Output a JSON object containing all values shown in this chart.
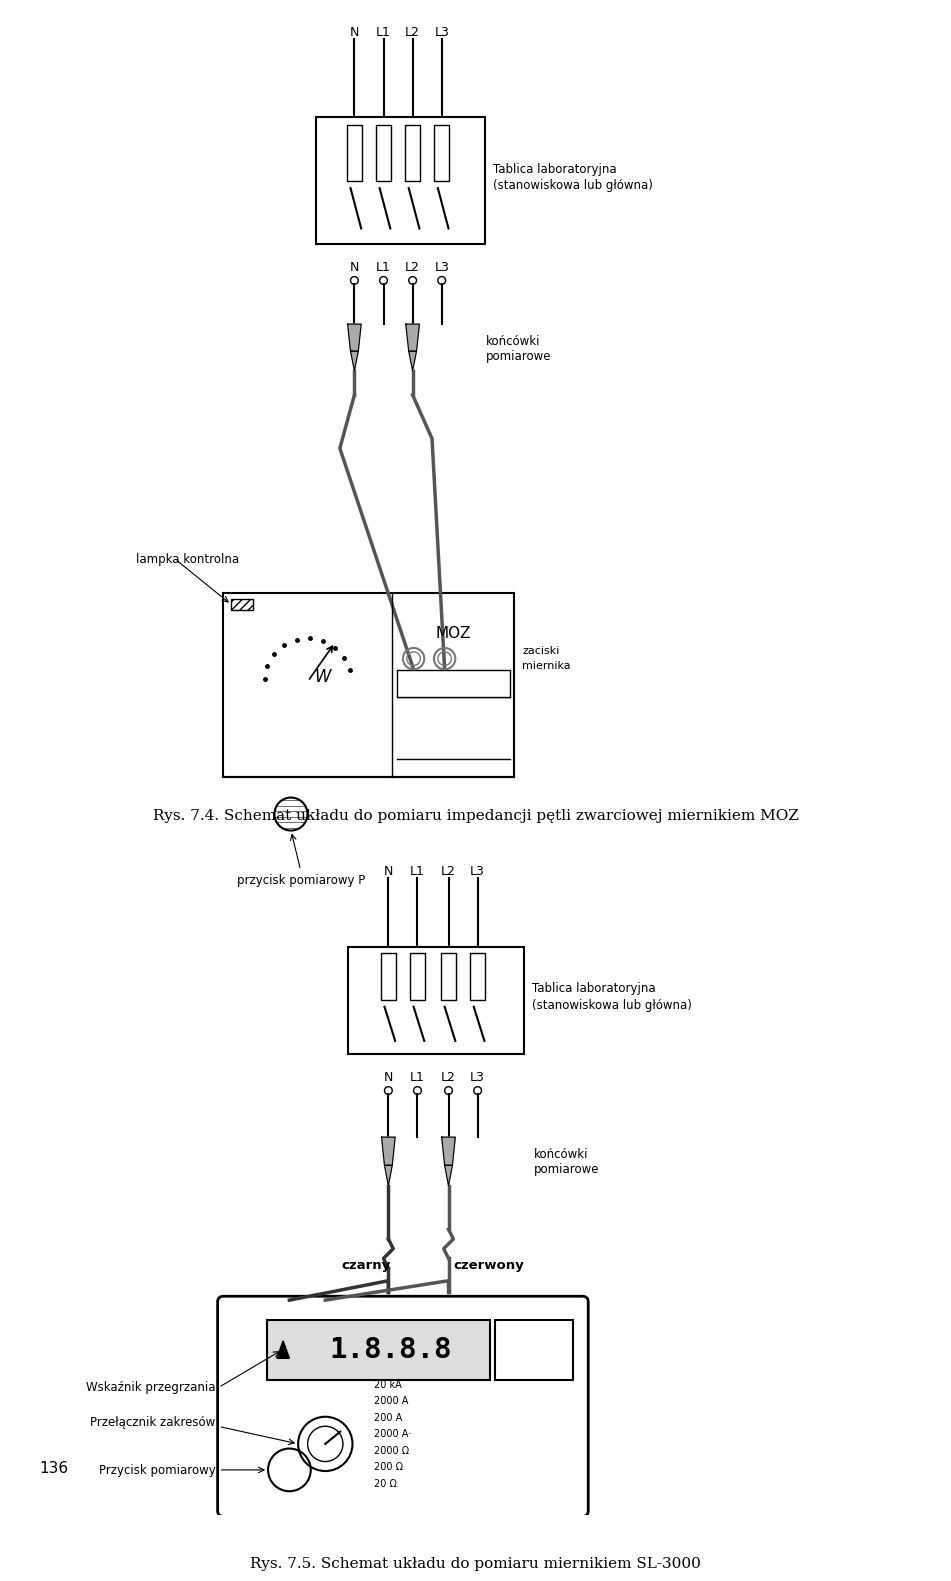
{
  "bg_color": "#ffffff",
  "line_color": "#000000",
  "gray_color": "#808080",
  "title1": "Rys. 7.4. Schemat układu do pomiaru impedancji pętli zwarciowej miernikiem MOZ",
  "title2": "Rys. 7.5. Schemat układu do pomiaru miernikiem SL-3000",
  "label_tablica1": "Tablica laboratoryjna",
  "label_tablica1b": "(stanowiskowa lub główna)",
  "label_tablica2": "Tablica laboratoryjna",
  "label_tablica2b": "(stanowiskowa lub główna)",
  "label_koncowki1": "końcówki",
  "label_pomiarowe1": "pomiarowe",
  "label_koncowki2": "końcówki",
  "label_pomiarowe2": "pomiarowe",
  "label_zaciski": "zaciski",
  "label_miernika": "miernika",
  "label_lampka": "lampka kontrolna",
  "label_przycisk": "przycisk pomiarowy P",
  "label_MOZ": "MOZ",
  "label_W": "W",
  "label_czarny": "czarny",
  "label_czerwony": "czerwony",
  "label_wskaznik": "Wskaźnik przegrzania",
  "label_przelacznik": "Przełącznik zakresów",
  "label_przycisk2": "Przycisk pomiarowy",
  "label_display": "1.8.8.8",
  "page_num": "136",
  "conductors1": [
    "N",
    "L1",
    "L2",
    "L3"
  ],
  "conductors2": [
    "N",
    "L1",
    "L2",
    "L3"
  ],
  "ranges": [
    "20 kA",
    "2000 A",
    "200 A",
    "2000 A·",
    "2000 Ω",
    "200 Ω",
    "20 Ω"
  ]
}
